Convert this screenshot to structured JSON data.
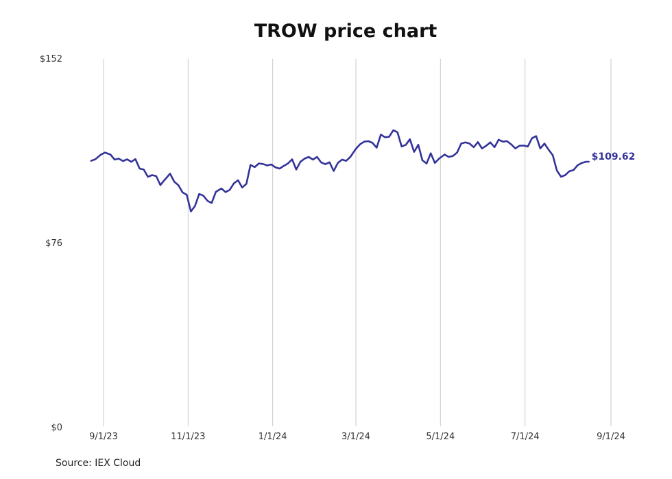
{
  "chart_data": {
    "type": "line",
    "title": "TROW price chart",
    "source": "Source: IEX Cloud",
    "y_ticks": [
      {
        "value": 152,
        "label": "$152"
      },
      {
        "value": 76,
        "label": "$76"
      },
      {
        "value": 0,
        "label": "$0"
      }
    ],
    "ylim": [
      0,
      152
    ],
    "x_ticks": [
      {
        "date": "2023-09-01",
        "label": "9/1/23"
      },
      {
        "date": "2023-11-01",
        "label": "11/1/23"
      },
      {
        "date": "2024-01-01",
        "label": "1/1/24"
      },
      {
        "date": "2024-03-01",
        "label": "3/1/24"
      },
      {
        "date": "2024-05-01",
        "label": "5/1/24"
      },
      {
        "date": "2024-07-01",
        "label": "7/1/24"
      },
      {
        "date": "2024-09-01",
        "label": "9/1/24"
      }
    ],
    "xlim": [
      "2023-08-23",
      "2024-09-01"
    ],
    "grid": "vertical",
    "line_color": "#333399",
    "last_value_label": "$109.62",
    "series": [
      {
        "values": [
          [
            "2023-08-23",
            110.0
          ],
          [
            "2023-08-26",
            110.6
          ],
          [
            "2023-08-30",
            112.5
          ],
          [
            "2023-09-02",
            113.4
          ],
          [
            "2023-09-06",
            112.6
          ],
          [
            "2023-09-09",
            110.5
          ],
          [
            "2023-09-12",
            110.9
          ],
          [
            "2023-09-15",
            109.9
          ],
          [
            "2023-09-18",
            110.6
          ],
          [
            "2023-09-21",
            109.6
          ],
          [
            "2023-09-24",
            110.7
          ],
          [
            "2023-09-27",
            106.8
          ],
          [
            "2023-09-30",
            106.4
          ],
          [
            "2023-10-03",
            103.4
          ],
          [
            "2023-10-06",
            104.1
          ],
          [
            "2023-10-09",
            103.7
          ],
          [
            "2023-10-12",
            100.0
          ],
          [
            "2023-10-15",
            102.1
          ],
          [
            "2023-10-19",
            104.7
          ],
          [
            "2023-10-22",
            101.4
          ],
          [
            "2023-10-25",
            99.9
          ],
          [
            "2023-10-28",
            97.0
          ],
          [
            "2023-10-31",
            96.0
          ],
          [
            "2023-11-03",
            89.1
          ],
          [
            "2023-11-06",
            91.4
          ],
          [
            "2023-11-09",
            96.3
          ],
          [
            "2023-11-12",
            95.6
          ],
          [
            "2023-11-15",
            93.5
          ],
          [
            "2023-11-18",
            92.6
          ],
          [
            "2023-11-21",
            97.2
          ],
          [
            "2023-11-25",
            98.6
          ],
          [
            "2023-11-28",
            97.1
          ],
          [
            "2023-12-01",
            98.0
          ],
          [
            "2023-12-04",
            100.7
          ],
          [
            "2023-12-07",
            102.0
          ],
          [
            "2023-12-10",
            99.0
          ],
          [
            "2023-12-13",
            100.5
          ],
          [
            "2023-12-16",
            108.3
          ],
          [
            "2023-12-19",
            107.4
          ],
          [
            "2023-12-22",
            108.9
          ],
          [
            "2023-12-25",
            108.7
          ],
          [
            "2023-12-28",
            108.1
          ],
          [
            "2023-12-31",
            108.5
          ],
          [
            "2024-01-03",
            107.3
          ],
          [
            "2024-01-06",
            106.8
          ],
          [
            "2024-01-09",
            107.9
          ],
          [
            "2024-01-12",
            108.9
          ],
          [
            "2024-01-15",
            110.6
          ],
          [
            "2024-01-18",
            106.4
          ],
          [
            "2024-01-21",
            109.6
          ],
          [
            "2024-01-24",
            110.9
          ],
          [
            "2024-01-27",
            111.6
          ],
          [
            "2024-01-30",
            110.5
          ],
          [
            "2024-02-02",
            111.6
          ],
          [
            "2024-02-05",
            109.3
          ],
          [
            "2024-02-08",
            108.6
          ],
          [
            "2024-02-11",
            109.4
          ],
          [
            "2024-02-14",
            105.8
          ],
          [
            "2024-02-17",
            109.1
          ],
          [
            "2024-02-20",
            110.5
          ],
          [
            "2024-02-23",
            110.0
          ],
          [
            "2024-02-26",
            111.6
          ],
          [
            "2024-03-01",
            114.9
          ],
          [
            "2024-03-04",
            116.8
          ],
          [
            "2024-03-07",
            117.9
          ],
          [
            "2024-03-10",
            118.1
          ],
          [
            "2024-03-13",
            117.4
          ],
          [
            "2024-03-16",
            115.4
          ],
          [
            "2024-03-19",
            120.8
          ],
          [
            "2024-03-22",
            119.7
          ],
          [
            "2024-03-25",
            119.9
          ],
          [
            "2024-03-28",
            122.6
          ],
          [
            "2024-03-31",
            121.8
          ],
          [
            "2024-04-03",
            115.9
          ],
          [
            "2024-04-06",
            116.6
          ],
          [
            "2024-04-09",
            118.9
          ],
          [
            "2024-04-12",
            113.7
          ],
          [
            "2024-04-15",
            116.6
          ],
          [
            "2024-04-18",
            110.2
          ],
          [
            "2024-04-21",
            108.9
          ],
          [
            "2024-04-24",
            113.1
          ],
          [
            "2024-04-27",
            109.1
          ],
          [
            "2024-04-30",
            110.9
          ],
          [
            "2024-05-04",
            112.6
          ],
          [
            "2024-05-07",
            111.6
          ],
          [
            "2024-05-10",
            112.0
          ],
          [
            "2024-05-13",
            113.4
          ],
          [
            "2024-05-16",
            117.1
          ],
          [
            "2024-05-19",
            117.6
          ],
          [
            "2024-05-22",
            117.1
          ],
          [
            "2024-05-25",
            115.6
          ],
          [
            "2024-05-28",
            117.7
          ],
          [
            "2024-05-31",
            115.1
          ],
          [
            "2024-06-03",
            116.2
          ],
          [
            "2024-06-06",
            117.6
          ],
          [
            "2024-06-09",
            115.6
          ],
          [
            "2024-06-12",
            118.7
          ],
          [
            "2024-06-15",
            117.9
          ],
          [
            "2024-06-18",
            118.1
          ],
          [
            "2024-06-21",
            116.8
          ],
          [
            "2024-06-24",
            115.1
          ],
          [
            "2024-06-27",
            116.2
          ],
          [
            "2024-06-30",
            116.3
          ],
          [
            "2024-07-03",
            115.9
          ],
          [
            "2024-07-06",
            119.3
          ],
          [
            "2024-07-09",
            120.2
          ],
          [
            "2024-07-12",
            115.1
          ],
          [
            "2024-07-15",
            117.1
          ],
          [
            "2024-07-18",
            114.6
          ],
          [
            "2024-07-21",
            112.3
          ],
          [
            "2024-07-24",
            106.0
          ],
          [
            "2024-07-27",
            103.4
          ],
          [
            "2024-07-30",
            104.1
          ],
          [
            "2024-08-02",
            105.7
          ],
          [
            "2024-08-05",
            106.2
          ],
          [
            "2024-08-08",
            108.2
          ],
          [
            "2024-08-11",
            109.1
          ],
          [
            "2024-08-14",
            109.6
          ],
          [
            "2024-08-16",
            109.62
          ]
        ]
      }
    ]
  }
}
